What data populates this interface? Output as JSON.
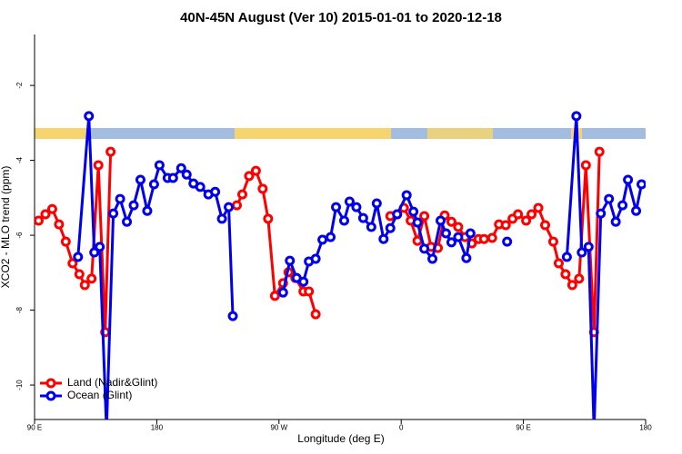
{
  "chart_data": {
    "type": "line",
    "title": "40N-45N August (Ver 10)   2015-01-01 to 2020-12-18",
    "xlabel": "Longitude (deg E)",
    "ylabel": "XCO2 - MLO trend (ppm)",
    "xlim": [
      90,
      540
    ],
    "xticks": [
      {
        "value": 90,
        "label": "90 E"
      },
      180,
      {
        "value": 270,
        "label": "90 W"
      },
      {
        "value": 360,
        "label": "0"
      },
      {
        "value": 450,
        "label": "90 E"
      },
      {
        "value": 540,
        "label": "180"
      }
    ],
    "ylim": [
      -10.92,
      -0.64
    ],
    "yticks": [
      -2,
      -4,
      -6,
      -8,
      -10
    ],
    "legend": "bottom-left",
    "series": [
      {
        "name": "Land (Nadir&Glint)",
        "color": "#ff0000",
        "x": [
          93,
          98,
          103,
          108,
          113,
          118,
          123,
          127,
          132,
          137,
          142,
          146,
          null,
          239,
          243,
          248,
          253,
          258,
          262,
          267,
          273,
          277,
          282,
          288,
          292,
          297,
          null,
          352,
          357,
          362,
          367,
          372,
          377,
          382,
          387,
          392,
          397,
          402,
          407,
          412,
          417,
          421,
          427,
          432,
          437,
          442,
          446,
          452,
          456,
          461,
          466,
          472,
          476,
          481,
          486,
          491,
          496,
          502,
          506
        ],
        "values": [
          -5.61,
          -5.44,
          -5.3,
          -5.71,
          -6.17,
          -6.75,
          -7.04,
          -7.33,
          -7.16,
          -4.13,
          -8.59,
          -3.77,
          null,
          -5.2,
          -4.91,
          -4.42,
          -4.28,
          -4.76,
          -5.56,
          -7.62,
          -7.28,
          -6.99,
          -7.14,
          -7.5,
          -7.5,
          -8.11,
          null,
          -5.49,
          -5.44,
          -5.27,
          -5.61,
          -6.15,
          -5.49,
          -6.31,
          -6.34,
          -5.47,
          -5.64,
          -5.78,
          -6.05,
          -6.22,
          -6.1,
          -6.1,
          -6.07,
          -5.71,
          -5.73,
          -5.56,
          -5.44,
          -5.61,
          -5.44,
          -5.27,
          -5.73,
          -6.17,
          -6.75,
          -7.04,
          -7.33,
          -7.16,
          -4.13,
          -8.59,
          -3.77
        ]
      },
      {
        "name": "Ocean (Glint)",
        "color": "#0000ee",
        "x": [
          122,
          130,
          134,
          138,
          143,
          148,
          153,
          158,
          163,
          168,
          173,
          178,
          182,
          188,
          192,
          198,
          202,
          207,
          212,
          218,
          223,
          228,
          233,
          236,
          null,
          273,
          278,
          283,
          288,
          292,
          297,
          302,
          308,
          312,
          318,
          322,
          327,
          332,
          338,
          342,
          347,
          352,
          357,
          364,
          369,
          372,
          377,
          383,
          389,
          393,
          397,
          402,
          408,
          411,
          null,
          438,
          null,
          482,
          489,
          493,
          498,
          502,
          507,
          513,
          518,
          523,
          527,
          533,
          537
        ],
        "values": [
          -6.58,
          -2.82,
          -6.46,
          -6.31,
          -11.2,
          -5.42,
          -5.03,
          -5.64,
          -5.2,
          -4.52,
          -5.35,
          -4.64,
          -4.13,
          -4.47,
          -4.47,
          -4.21,
          -4.38,
          -4.62,
          -4.71,
          -4.91,
          -4.84,
          -5.56,
          -5.25,
          -8.16,
          null,
          -7.53,
          -6.68,
          -7.14,
          -7.24,
          -6.7,
          -6.63,
          -6.12,
          -6.05,
          -5.25,
          -5.61,
          -5.1,
          -5.25,
          -5.54,
          -5.78,
          -5.15,
          -6.1,
          -5.81,
          -5.44,
          -4.93,
          -5.37,
          -5.66,
          -6.36,
          -6.63,
          -5.61,
          -5.95,
          -6.19,
          -6.05,
          -6.61,
          -5.95,
          null,
          -6.17,
          null,
          -6.58,
          -2.82,
          -6.46,
          -6.31,
          -11.2,
          -5.42,
          -5.03,
          -5.64,
          -5.2,
          -4.52,
          -5.35,
          -4.64
        ]
      }
    ]
  }
}
